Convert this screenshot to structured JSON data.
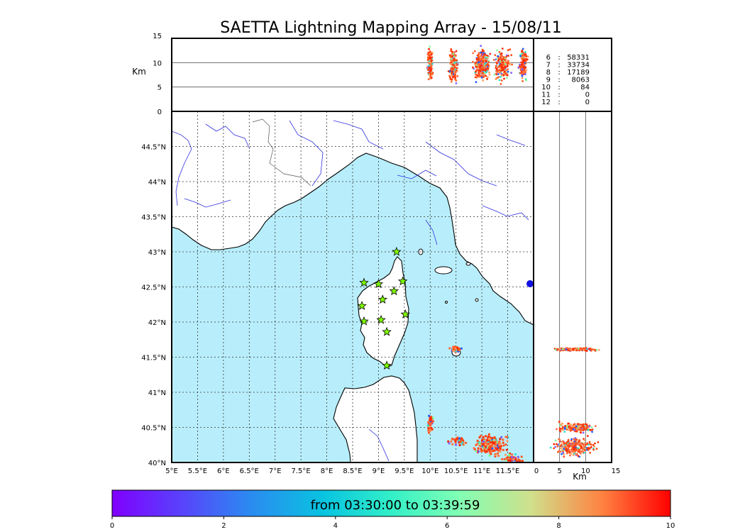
{
  "title": "SAETTA Lightning Mapping Array - 15/08/11",
  "colors": {
    "sea": "#b8eefb",
    "land": "#ffffff",
    "river": "#3030e0",
    "highlight": "#ff0000",
    "station_fill": "#80ff00"
  },
  "chart_data": [
    {
      "name": "altitude-vs-longitude",
      "type": "scatter",
      "ylabel": "Km",
      "ylim": [
        0,
        15
      ],
      "yticks": [
        "0",
        "5",
        "10",
        "15"
      ],
      "gridlines_y": [
        5,
        10
      ]
    },
    {
      "name": "map",
      "type": "scatter",
      "xlim": [
        5,
        12
      ],
      "ylim": [
        40,
        45
      ],
      "xticks": [
        "5°E",
        "5.5°E",
        "6°E",
        "6.5°E",
        "7°E",
        "7.5°E",
        "8°E",
        "8.5°E",
        "9°E",
        "9.5°E",
        "10°E",
        "10.5°E",
        "11°E",
        "11.5°E"
      ],
      "yticks": [
        "40°N",
        "40.5°N",
        "41°N",
        "41.5°N",
        "42°N",
        "42.5°N",
        "43°N",
        "43.5°N",
        "44°N",
        "44.5°N"
      ],
      "stations": [
        {
          "lon": 9.35,
          "lat": 43.0
        },
        {
          "lon": 8.72,
          "lat": 42.56
        },
        {
          "lon": 9.0,
          "lat": 42.54
        },
        {
          "lon": 9.47,
          "lat": 42.58
        },
        {
          "lon": 9.3,
          "lat": 42.44
        },
        {
          "lon": 9.08,
          "lat": 42.32
        },
        {
          "lon": 8.68,
          "lat": 42.23
        },
        {
          "lon": 9.52,
          "lat": 42.11
        },
        {
          "lon": 8.72,
          "lat": 42.01
        },
        {
          "lon": 9.05,
          "lat": 42.03
        },
        {
          "lon": 9.16,
          "lat": 41.86
        },
        {
          "lon": 9.16,
          "lat": 41.38
        }
      ],
      "clusters": [
        {
          "lon": 10.5,
          "lat": 41.61,
          "spread_lon": 0.08,
          "spread_lat": 0.03,
          "count": 60
        },
        {
          "lon": 10.0,
          "lat": 40.55,
          "spread_lon": 0.04,
          "spread_lat": 0.1,
          "count": 50
        },
        {
          "lon": 10.55,
          "lat": 40.3,
          "spread_lon": 0.12,
          "spread_lat": 0.05,
          "count": 40
        },
        {
          "lon": 11.15,
          "lat": 40.25,
          "spread_lon": 0.25,
          "spread_lat": 0.12,
          "count": 200
        },
        {
          "lon": 11.6,
          "lat": 40.05,
          "spread_lon": 0.15,
          "spread_lat": 0.05,
          "count": 50
        }
      ]
    },
    {
      "name": "latitude-vs-altitude",
      "type": "scatter",
      "xlabel": "Km",
      "xlim": [
        0,
        15
      ],
      "xticks": [
        "0",
        "5",
        "10",
        "15"
      ],
      "gridlines_x": [
        5,
        10
      ]
    },
    {
      "name": "time-colorbar",
      "type": "colorbar",
      "range": [
        0,
        10
      ],
      "ticks": [
        "0",
        "2",
        "4",
        "6",
        "8",
        "10"
      ],
      "label": "from 03:30:00 to 03:39:59"
    }
  ],
  "counts": [
    {
      "label": "6",
      "value": "58331",
      "highlight": false
    },
    {
      "label": "7",
      "value": "33734",
      "highlight": true
    },
    {
      "label": "8",
      "value": "17189",
      "highlight": false
    },
    {
      "label": "9",
      "value": "8063",
      "highlight": false
    },
    {
      "label": "10",
      "value": "84",
      "highlight": false
    },
    {
      "label": "11",
      "value": "0",
      "highlight": false
    },
    {
      "label": "12",
      "value": "0",
      "highlight": false
    }
  ]
}
